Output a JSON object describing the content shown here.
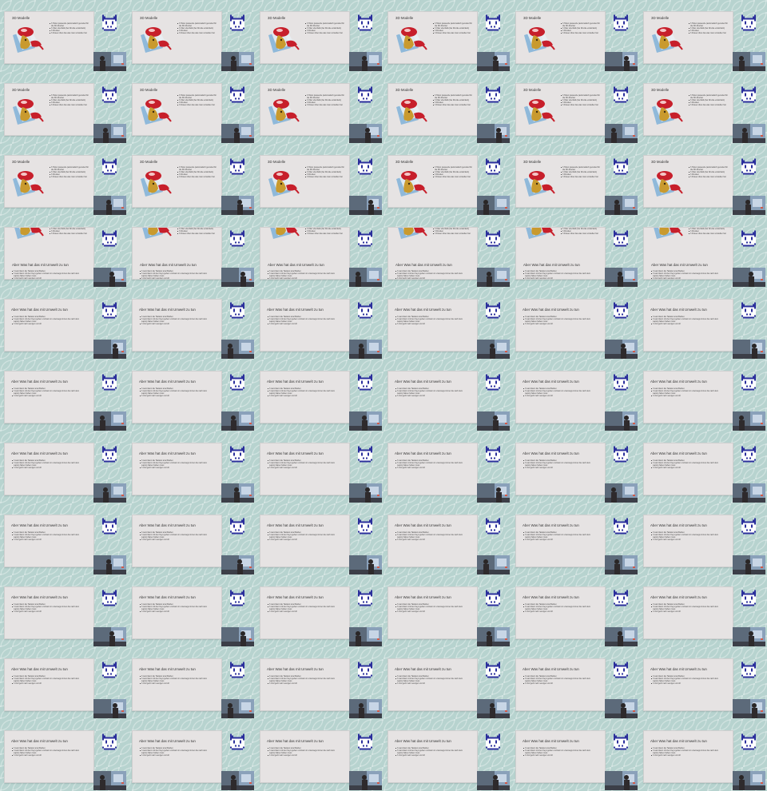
{
  "slides": {
    "modelle": {
      "title": "3D Modelle",
      "bullets": [
        "3 Holen passende (automatisch gecoded für die 3D-Drucker",
        "3 Oder ebenfalls (bei Drucke entwickeln)",
        "3 Drucken",
        "3 Frauen über das was man vorstellen hat"
      ]
    },
    "umwelt": {
      "title": "Aber Was hat das mit Umwelt zu tun",
      "bullets": [
        "3 Land kann die Tastatur anschließen",
        "3 Land kann mit den Keys geben und kann in unterwegs immer die nach dem Laptop haben haben muss",
        "3 Und geht mehr weniger und oft"
      ]
    }
  },
  "layout": {
    "columns": 6,
    "rows": 11,
    "transition_frames": [
      18,
      19,
      20,
      21,
      22,
      23
    ]
  },
  "colors": {
    "background": "#b7d3cf",
    "slide_bg": "#e6e3e3",
    "logo_blue": "#2b2f9c",
    "logo_white": "#ffffff",
    "dragon_red": "#c71f2b",
    "dragon_gold": "#c99a2e",
    "paper_blue": "#7fb2d8"
  },
  "icons": {
    "logo": "pixel-cat-logo-icon",
    "camera": "camera-feed-thumbnail",
    "illustration": "dragon-3d-model-illustration"
  }
}
